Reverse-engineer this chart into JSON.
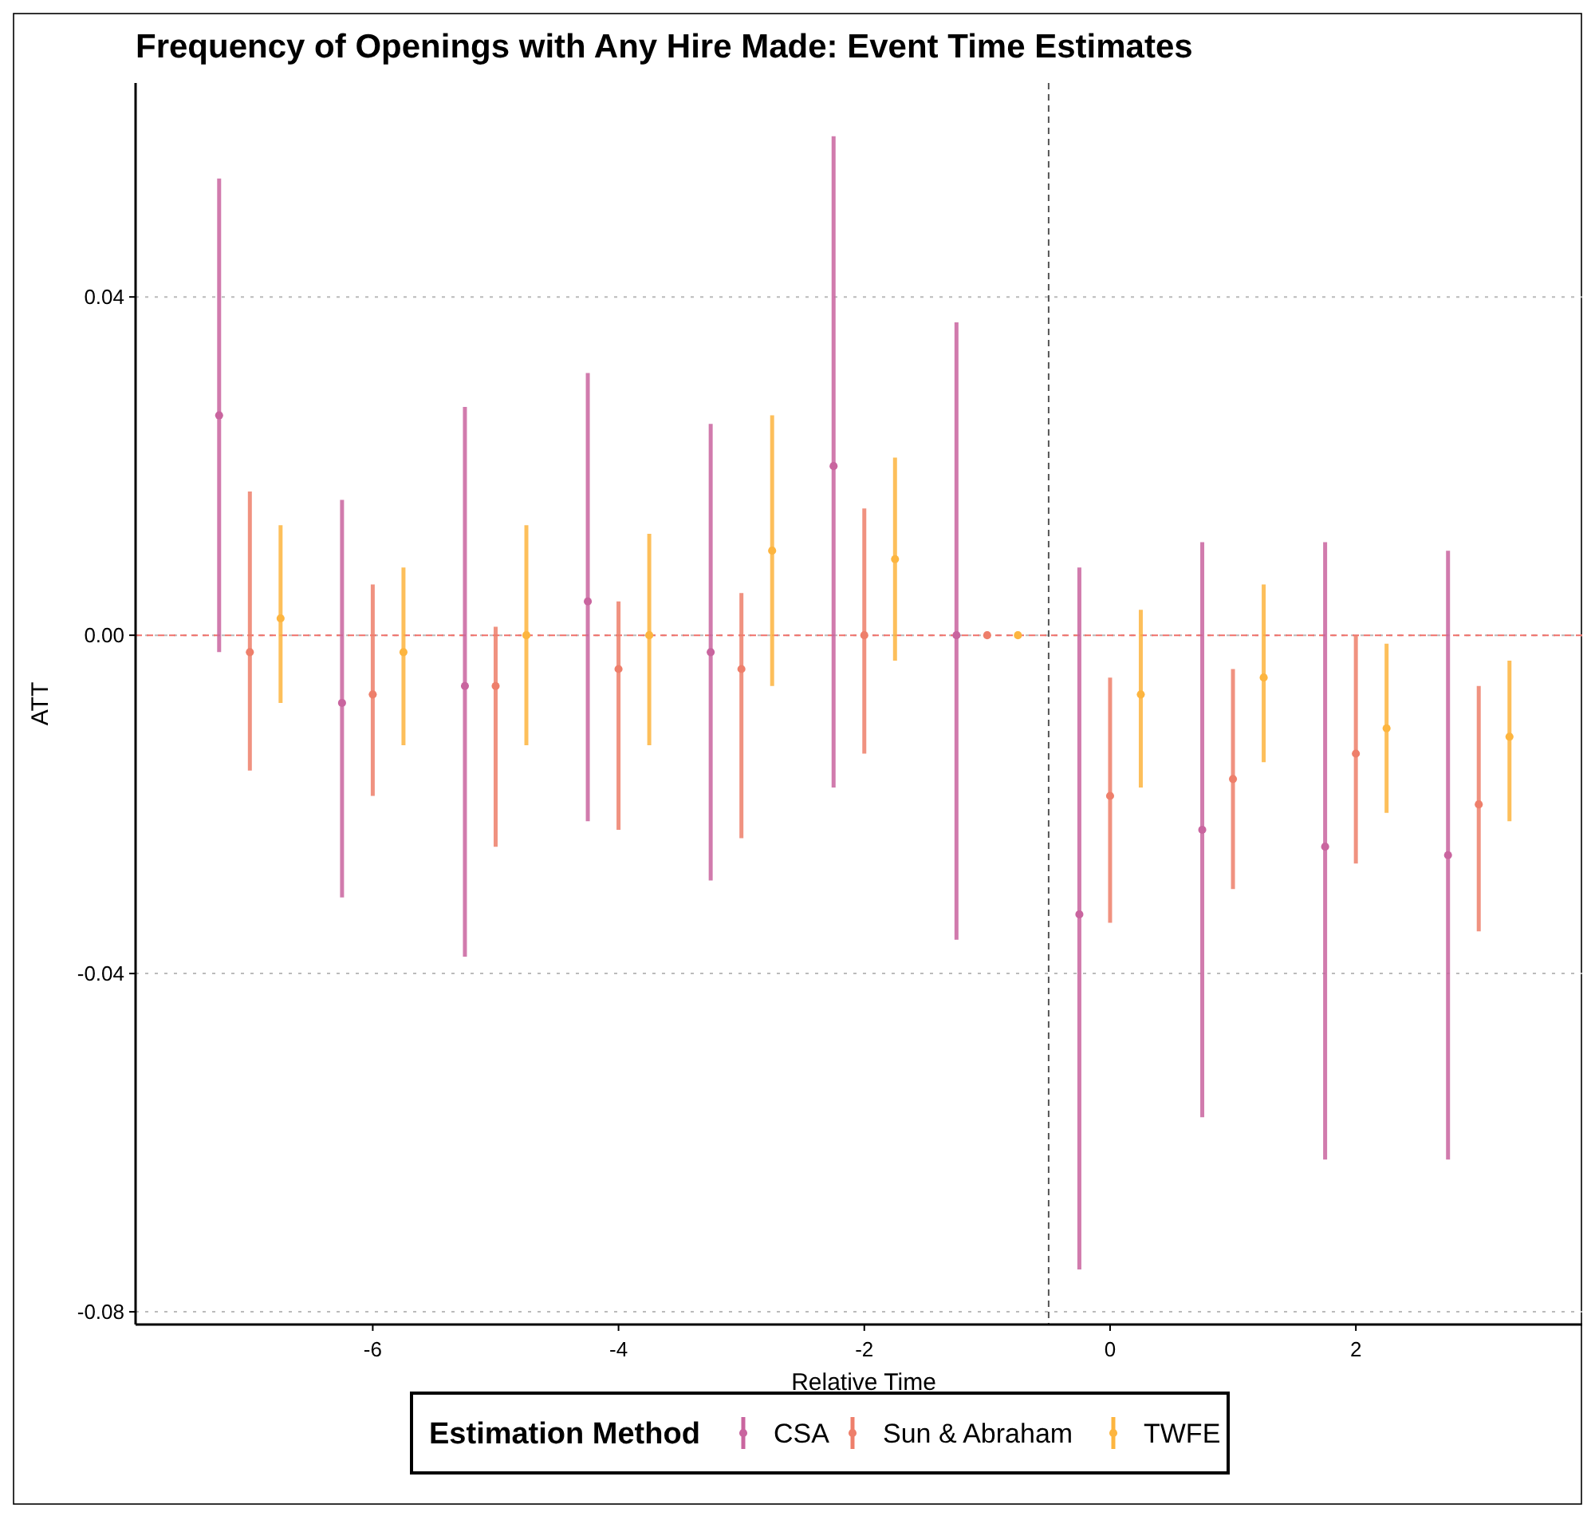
{
  "chart_data": {
    "type": "scatter",
    "title": "Frequency of Openings with Any Hire Made: Event Time Estimates",
    "xlabel": "Relative Time",
    "ylabel": "ATT",
    "legend_title": "Estimation Method",
    "legend": "bottom",
    "grid": "y",
    "marker": "circle",
    "xlim": [
      -7.93,
      3.92
    ],
    "xticks": [
      -6,
      -4,
      -2,
      0,
      2
    ],
    "ylim": [
      -0.0815,
      0.0653
    ],
    "yticks": [
      {
        "value": -0.08,
        "label": "-0.08"
      },
      {
        "value": -0.04,
        "label": "-0.04"
      },
      {
        "value": 0,
        "label": "0.00"
      },
      {
        "value": 0.04,
        "label": "0.04"
      }
    ],
    "ref_lines": [
      {
        "axis": "x",
        "value": -0.5,
        "color": "#555555",
        "line_style": "dashed"
      },
      {
        "axis": "y",
        "value": 0,
        "color": "#f0706a",
        "line_style": "dashed"
      }
    ],
    "series": [
      {
        "name": "CSA",
        "color": "#c9659f",
        "x": [
          -7.25,
          -6.25,
          -5.25,
          -4.25,
          -3.25,
          -2.25,
          -1.25,
          -0.25,
          0.75,
          1.75,
          2.75
        ],
        "values": [
          0.026,
          -0.008,
          -0.006,
          0.004,
          -0.002,
          0.02,
          0.0,
          -0.033,
          -0.023,
          -0.025,
          -0.026
        ],
        "errors": [
          [
            -0.002,
            0.054
          ],
          [
            -0.031,
            0.016
          ],
          [
            -0.038,
            0.027
          ],
          [
            -0.022,
            0.031
          ],
          [
            -0.029,
            0.025
          ],
          [
            -0.018,
            0.059
          ],
          [
            -0.036,
            0.037
          ],
          [
            -0.075,
            0.008
          ],
          [
            -0.057,
            0.011
          ],
          [
            -0.062,
            0.011
          ],
          [
            -0.062,
            0.01
          ]
        ]
      },
      {
        "name": "Sun & Abraham",
        "color": "#ee7f6b",
        "x": [
          -7,
          -6,
          -5,
          -4,
          -3,
          -2,
          -1,
          0,
          1,
          2,
          3
        ],
        "values": [
          -0.002,
          -0.007,
          -0.006,
          -0.004,
          -0.004,
          0.0,
          0.0,
          -0.019,
          -0.017,
          -0.014,
          -0.02
        ],
        "errors": [
          [
            -0.016,
            0.017
          ],
          [
            -0.019,
            0.006
          ],
          [
            -0.025,
            0.001
          ],
          [
            -0.023,
            0.004
          ],
          [
            -0.024,
            0.005
          ],
          [
            -0.014,
            0.015
          ],
          null,
          [
            -0.034,
            -0.005
          ],
          [
            -0.03,
            -0.004
          ],
          [
            -0.027,
            0.0
          ],
          [
            -0.035,
            -0.006
          ]
        ]
      },
      {
        "name": "TWFE",
        "color": "#fdb53f",
        "x": [
          -6.75,
          -5.75,
          -4.75,
          -3.75,
          -2.75,
          -1.75,
          -0.75,
          0.25,
          1.25,
          2.25,
          3.25
        ],
        "values": [
          0.002,
          -0.002,
          0.0,
          0.0,
          0.01,
          0.009,
          0.0,
          -0.007,
          -0.005,
          -0.011,
          -0.012
        ],
        "errors": [
          [
            -0.008,
            0.013
          ],
          [
            -0.013,
            0.008
          ],
          [
            -0.013,
            0.013
          ],
          [
            -0.013,
            0.012
          ],
          [
            -0.006,
            0.026
          ],
          [
            -0.003,
            0.021
          ],
          null,
          [
            -0.018,
            0.003
          ],
          [
            -0.015,
            0.006
          ],
          [
            -0.021,
            -0.001
          ],
          [
            -0.022,
            -0.003
          ]
        ]
      }
    ]
  }
}
